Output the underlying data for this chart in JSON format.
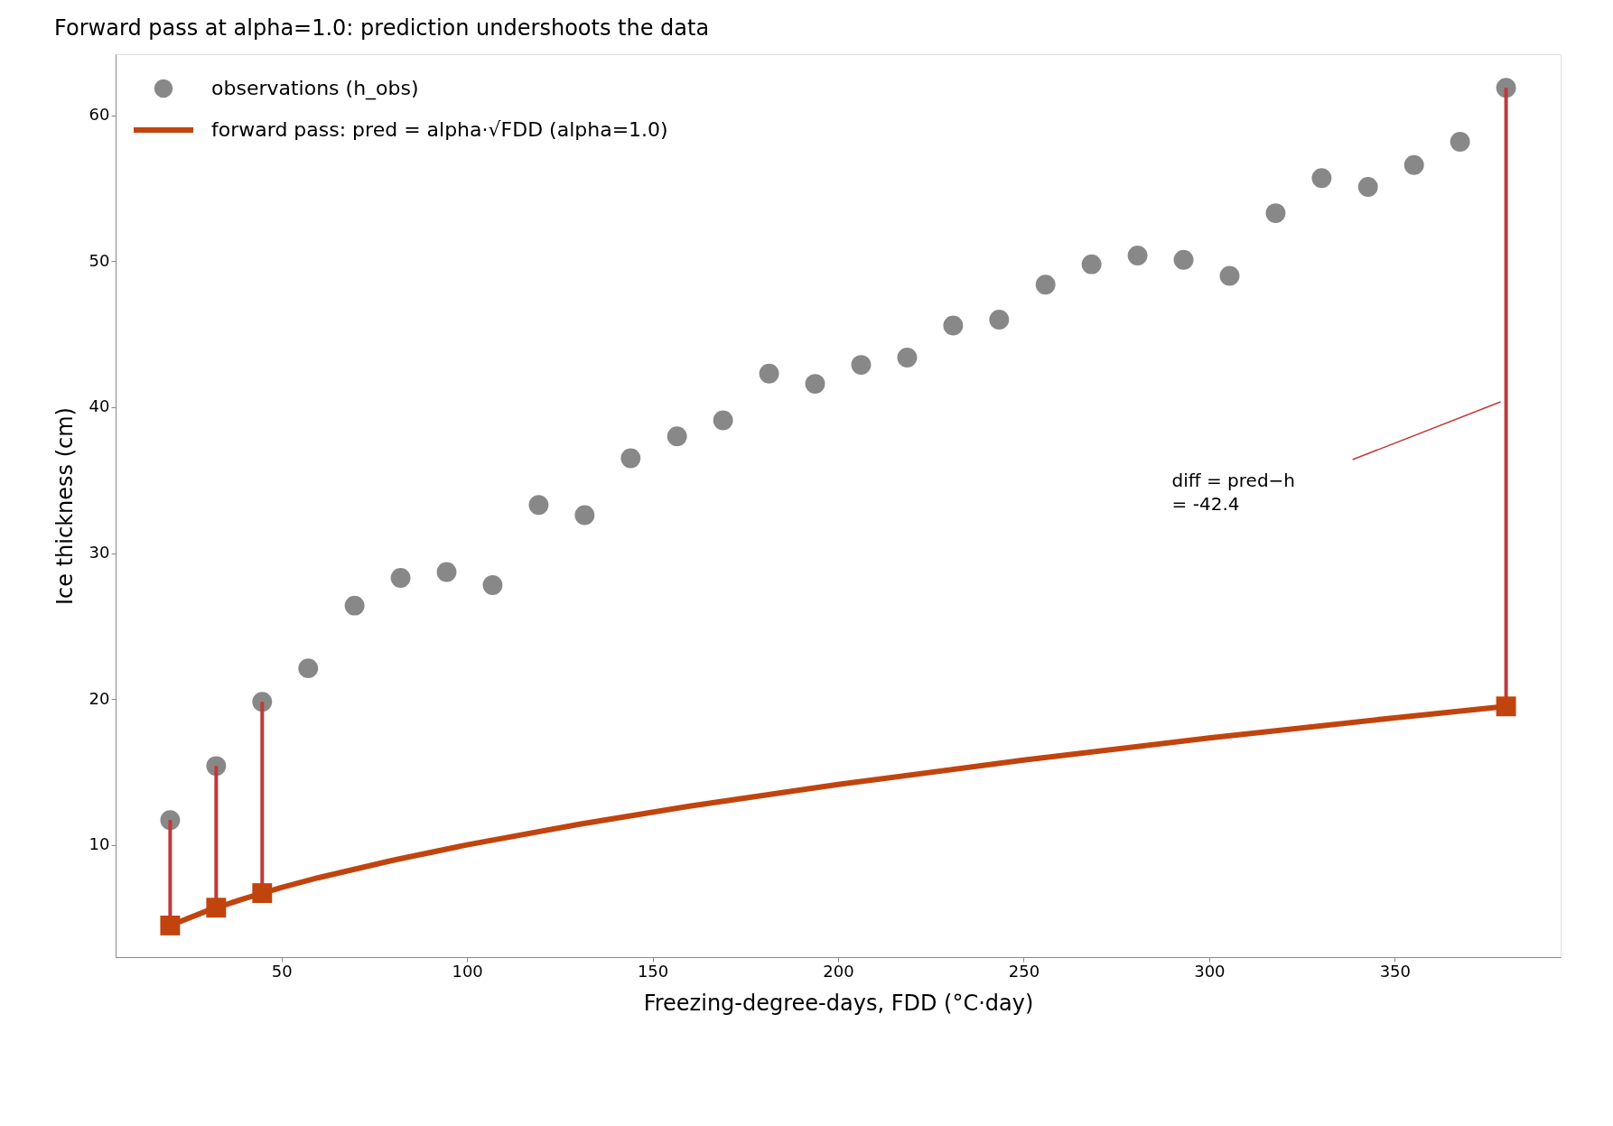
{
  "chart_data": {
    "type": "scatter",
    "title": "Forward pass at alpha=1.0: prediction undershoots the data",
    "xlabel": "Freezing-degree-days, FDD (°C·day)",
    "ylabel": "Ice thickness (cm)",
    "xlim": [
      5.3,
      394.7
    ],
    "ylim": [
      2.3,
      64.2
    ],
    "xticks": [
      50,
      100,
      150,
      200,
      250,
      300,
      350
    ],
    "yticks": [
      10,
      20,
      30,
      40,
      50,
      60
    ],
    "grid": false,
    "legend": "top left",
    "series": [
      {
        "name": "observations (h_obs)",
        "type": "scatter",
        "marker": "circle",
        "color": "#888888",
        "x": [
          20,
          32.4,
          44.8,
          57.2,
          69.7,
          82.1,
          94.5,
          106.9,
          119.3,
          131.7,
          144.1,
          156.6,
          169.0,
          181.4,
          193.8,
          206.2,
          218.6,
          231.0,
          243.4,
          255.9,
          268.3,
          280.7,
          293.1,
          305.5,
          317.9,
          330.3,
          342.8,
          355.2,
          367.6,
          380
        ],
        "values": [
          11.7,
          15.4,
          19.8,
          22.1,
          26.4,
          28.3,
          28.7,
          27.8,
          33.3,
          32.6,
          36.5,
          38.0,
          39.1,
          42.3,
          41.6,
          42.9,
          43.4,
          45.6,
          46.0,
          48.4,
          49.8,
          50.4,
          50.1,
          49.0,
          53.3,
          55.7,
          55.1,
          56.6,
          58.2,
          61.9
        ]
      },
      {
        "name": "forward pass: pred = alpha·√FDD  (alpha=1.0)",
        "type": "line",
        "marker": "none",
        "line_style": "solid",
        "color": "#c1440e",
        "x": [
          20,
          30,
          40,
          50,
          60,
          80,
          100,
          130,
          160,
          200,
          250,
          300,
          350,
          380
        ],
        "values": [
          4.47,
          5.48,
          6.32,
          7.07,
          7.75,
          8.94,
          10.0,
          11.4,
          12.65,
          14.14,
          15.81,
          17.32,
          18.71,
          19.49
        ]
      },
      {
        "type": "scatter",
        "marker": "square",
        "color": "#c1440e",
        "x": [
          20,
          32.4,
          44.8,
          380
        ],
        "values": [
          4.47,
          5.69,
          6.69,
          19.49
        ],
        "errors": [
          [
            4.47,
            11.7
          ],
          [
            5.69,
            15.4
          ],
          [
            6.69,
            19.8
          ],
          [
            19.49,
            61.9
          ]
        ]
      }
    ],
    "annotations": [
      "diff = pred−h\n= -42.4"
    ]
  }
}
